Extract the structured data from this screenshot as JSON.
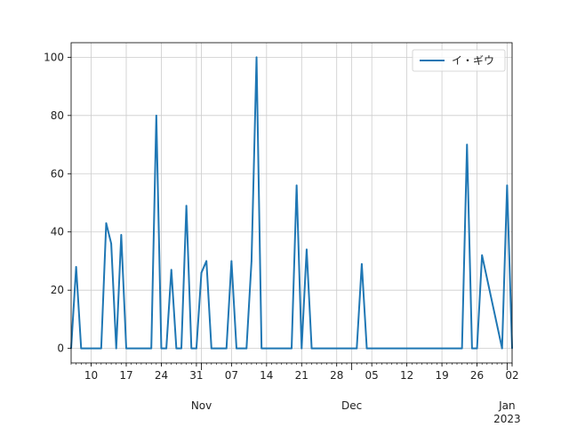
{
  "chart_data": {
    "type": "line",
    "title": "",
    "xlabel": "",
    "ylabel": "",
    "grid": true,
    "legend_position": "top-right",
    "xlim": [
      "2022-10-06",
      "2023-01-02"
    ],
    "ylim": [
      -5,
      105
    ],
    "y_ticks": [
      0,
      20,
      40,
      60,
      80,
      100
    ],
    "x_ticks": [
      {
        "date": "2022-10-10",
        "label": "10"
      },
      {
        "date": "2022-10-17",
        "label": "17"
      },
      {
        "date": "2022-10-24",
        "label": "24"
      },
      {
        "date": "2022-10-31",
        "label": "31"
      },
      {
        "date": "2022-11-07",
        "label": "07"
      },
      {
        "date": "2022-11-14",
        "label": "14"
      },
      {
        "date": "2022-11-21",
        "label": "21"
      },
      {
        "date": "2022-11-28",
        "label": "28"
      },
      {
        "date": "2022-12-05",
        "label": "05"
      },
      {
        "date": "2022-12-12",
        "label": "12"
      },
      {
        "date": "2022-12-19",
        "label": "19"
      },
      {
        "date": "2022-12-26",
        "label": "26"
      },
      {
        "date": "2023-01-02",
        "label": "02"
      }
    ],
    "month_labels": [
      {
        "date": "2022-11-01",
        "label": "Nov"
      },
      {
        "date": "2022-12-01",
        "label": "Dec"
      },
      {
        "date": "2023-01-01",
        "label": "Jan"
      }
    ],
    "year_labels": [
      {
        "date": "2023-01-01",
        "label": "2023"
      }
    ],
    "series": [
      {
        "name": "イ・ギウ",
        "color": "#1f77b4",
        "x": [
          "2022-10-06",
          "2022-10-07",
          "2022-10-08",
          "2022-10-12",
          "2022-10-13",
          "2022-10-14",
          "2022-10-15",
          "2022-10-16",
          "2022-10-17",
          "2022-10-22",
          "2022-10-23",
          "2022-10-24",
          "2022-10-25",
          "2022-10-26",
          "2022-10-27",
          "2022-10-28",
          "2022-10-29",
          "2022-10-30",
          "2022-10-31",
          "2022-11-01",
          "2022-11-02",
          "2022-11-03",
          "2022-11-06",
          "2022-11-07",
          "2022-11-08",
          "2022-11-10",
          "2022-11-11",
          "2022-11-12",
          "2022-11-13",
          "2022-11-19",
          "2022-11-20",
          "2022-11-21",
          "2022-11-22",
          "2022-11-23",
          "2022-12-02",
          "2022-12-03",
          "2022-12-04",
          "2022-12-23",
          "2022-12-24",
          "2022-12-25",
          "2022-12-26",
          "2022-12-27",
          "2022-12-31",
          "2023-01-01",
          "2023-01-02"
        ],
        "y": [
          0,
          28,
          0,
          0,
          43,
          36,
          0,
          39,
          0,
          0,
          80,
          0,
          0,
          27,
          0,
          0,
          49,
          0,
          0,
          26,
          30,
          0,
          0,
          30,
          0,
          0,
          30,
          100,
          0,
          0,
          56,
          0,
          34,
          0,
          0,
          29,
          0,
          0,
          70,
          0,
          0,
          32,
          0,
          56,
          0
        ]
      }
    ]
  }
}
